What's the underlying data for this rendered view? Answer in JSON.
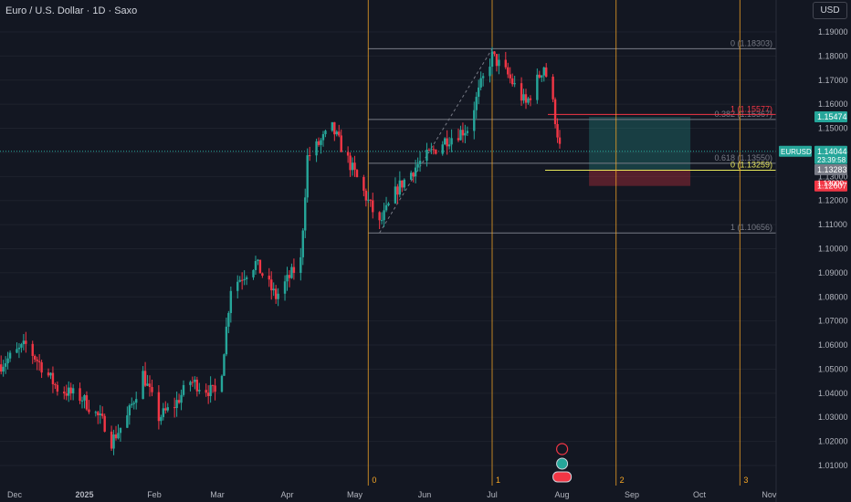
{
  "header": {
    "title": "Euro / U.S. Dollar · 1D · Saxo",
    "currency_button": "USD"
  },
  "colors": {
    "background": "#131722",
    "up": "#26a69a",
    "down": "#f23645",
    "axis_text": "#b2b5be",
    "cycle_line": "#f9a825",
    "fib_line": "#787b86",
    "long_profit": "#26a69a",
    "long_loss": "#f23645",
    "price_label": "#26a69a",
    "grid": "#1e222d"
  },
  "chart_data": {
    "type": "candlestick",
    "symbol": "EURUSD",
    "ylim": [
      1.0,
      1.195
    ],
    "y_ticks": [
      "1.19000",
      "1.18000",
      "1.17000",
      "1.16000",
      "1.15000",
      "1.14000",
      "1.13000",
      "1.12000",
      "1.11000",
      "1.10000",
      "1.09000",
      "1.08000",
      "1.07000",
      "1.06000",
      "1.05000",
      "1.04000",
      "1.03000",
      "1.02000",
      "1.01000"
    ],
    "x_ticks": [
      "Dec",
      "2025",
      "Feb",
      "Mar",
      "Apr",
      "May",
      "Jun",
      "Jul",
      "Aug",
      "Sep",
      "Oct",
      "Nov"
    ],
    "price_path": [
      [
        "Nov 25",
        1.052
      ],
      [
        "Dec 6",
        1.06
      ],
      [
        "Dec 14",
        1.05
      ],
      [
        "Dec 20",
        1.042
      ],
      [
        "Dec 31",
        1.038
      ],
      [
        "Jan 10",
        1.027
      ],
      [
        "Jan 13",
        1.02
      ],
      [
        "Jan 20",
        1.03
      ],
      [
        "Jan 27",
        1.048
      ],
      [
        "Feb 3",
        1.03
      ],
      [
        "Feb 10",
        1.035
      ],
      [
        "Feb 17",
        1.045
      ],
      [
        "Feb 28",
        1.04
      ],
      [
        "Mar 3",
        1.05
      ],
      [
        "Mar 7",
        1.084
      ],
      [
        "Mar 18",
        1.094
      ],
      [
        "Mar 27",
        1.08
      ],
      [
        "Apr 7",
        1.095
      ],
      [
        "Apr 10",
        1.138
      ],
      [
        "Apr 21",
        1.15
      ],
      [
        "Apr 30",
        1.133
      ],
      [
        "May 12",
        1.11
      ],
      [
        "May 20",
        1.125
      ],
      [
        "May 29",
        1.135
      ],
      [
        "Jun 10",
        1.145
      ],
      [
        "Jun 20",
        1.15
      ],
      [
        "Jun 26",
        1.168
      ],
      [
        "Jul 1",
        1.18
      ],
      [
        "Jul 8",
        1.172
      ],
      [
        "Jul 16",
        1.16
      ],
      [
        "Jul 24",
        1.176
      ],
      [
        "Jul 28",
        1.16
      ],
      [
        "Jul 31",
        1.142
      ]
    ],
    "current_price": "1.14044",
    "countdown": "23:39:58",
    "price_labels": [
      {
        "text": "1.15474",
        "kind": "target",
        "value": 1.15474
      },
      {
        "text": "1.13283",
        "kind": "gray",
        "value": 1.13283
      },
      {
        "text": "1.12607",
        "kind": "stop",
        "value": 1.12607
      }
    ],
    "fibonacci": [
      {
        "text": "0 (1.18303)",
        "value": 1.18303
      },
      {
        "text": "0.382 (1.15367)",
        "value": 1.15367
      },
      {
        "text": "0.618 (1.13550)",
        "value": 1.1355
      },
      {
        "text": "1 (1.10656)",
        "value": 1.10656
      }
    ],
    "fib2": [
      {
        "text": "1 (1.15577)",
        "value": 1.15577
      },
      {
        "text": "0 (1.13259)",
        "value": 1.13259
      }
    ],
    "extra_label": "1.13000",
    "long_position": {
      "entry": 1.13283,
      "target": 1.15474,
      "stop": 1.12607,
      "from": "Aug 13",
      "to": "Sep 27"
    },
    "cycle_lines": [
      {
        "label": "0",
        "date": "May 7"
      },
      {
        "label": "1",
        "date": "Jul 1"
      },
      {
        "label": "2",
        "date": "Aug 25"
      },
      {
        "label": "3",
        "date": "Oct 19"
      }
    ]
  }
}
